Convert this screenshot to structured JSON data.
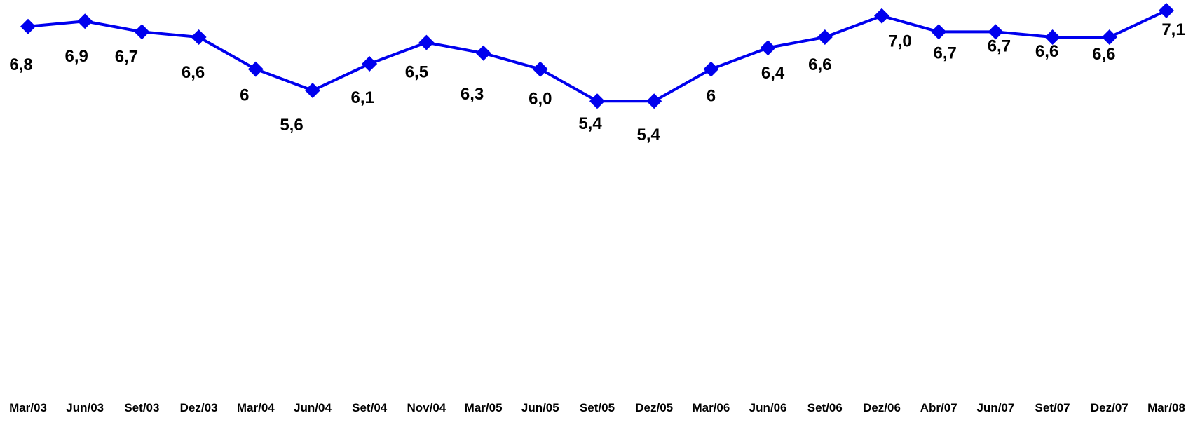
{
  "chart_data": {
    "type": "line",
    "categories": [
      "Mar/03",
      "Jun/03",
      "Set/03",
      "Dez/03",
      "Mar/04",
      "Jun/04",
      "Set/04",
      "Nov/04",
      "Mar/05",
      "Jun/05",
      "Set/05",
      "Dez/05",
      "Mar/06",
      "Jun/06",
      "Set/06",
      "Dez/06",
      "Abr/07",
      "Jun/07",
      "Set/07",
      "Dez/07",
      "Mar/08"
    ],
    "series": [
      {
        "values": [
          6.8,
          6.9,
          6.7,
          6.6,
          6.0,
          5.6,
          6.1,
          6.5,
          6.3,
          6.0,
          5.4,
          5.4,
          6.0,
          6.4,
          6.6,
          7.0,
          6.7,
          6.7,
          6.6,
          6.6,
          7.1
        ],
        "labels": [
          "6,8",
          "6,9",
          "6,7",
          "6,6",
          "6",
          "5,6",
          "6,1",
          "6,5",
          "6,3",
          "6,0",
          "5,4",
          "5,4",
          "6",
          "6,4",
          "6,6",
          "7,0",
          "6,7",
          "6,7",
          "6,6",
          "6,6",
          "7,1"
        ],
        "color": "#0000ee"
      }
    ],
    "grid": false,
    "legend": "none"
  }
}
